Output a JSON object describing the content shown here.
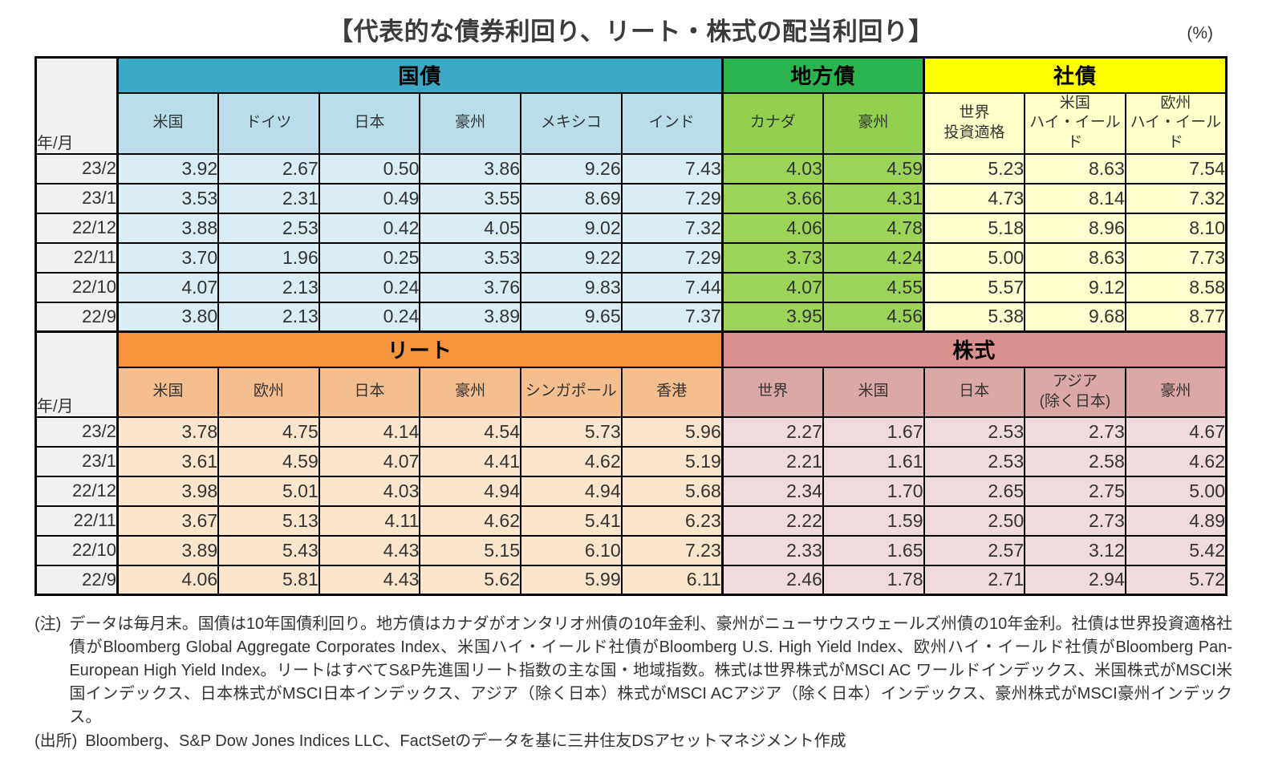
{
  "title": "【代表的な債券利回り、リート・株式の配当利回り】",
  "unit_label": "(%)",
  "top_table": {
    "year_label": "年/月",
    "sections": [
      {
        "name": "government-bonds",
        "label": "国債",
        "header_bg": "#3BA8C8",
        "sub_bg": "#B9DEEA",
        "cell_bg": "#DAEDF5",
        "columns": [
          "米国",
          "ドイツ",
          "日本",
          "豪州",
          "メキシコ",
          "インド"
        ]
      },
      {
        "name": "municipal-bonds",
        "label": "地方債",
        "header_bg": "#2BB34D",
        "sub_bg": "#92D050",
        "cell_bg": "#9CD45A",
        "columns": [
          "カナダ",
          "豪州"
        ]
      },
      {
        "name": "corporate-bonds",
        "label": "社債",
        "header_bg": "#FFFF00",
        "sub_bg": "#FFFFC9",
        "cell_bg": "#FFFFCF",
        "columns": [
          "世界\n投資適格",
          "米国\nハイ・イールド",
          "欧州\nハイ・イールド"
        ]
      }
    ],
    "rows": [
      {
        "period": "23/2",
        "values": [
          "3.92",
          "2.67",
          "0.50",
          "3.86",
          "9.26",
          "7.43",
          "4.03",
          "4.59",
          "5.23",
          "8.63",
          "7.54"
        ]
      },
      {
        "period": "23/1",
        "values": [
          "3.53",
          "2.31",
          "0.49",
          "3.55",
          "8.69",
          "7.29",
          "3.66",
          "4.31",
          "4.73",
          "8.14",
          "7.32"
        ]
      },
      {
        "period": "22/12",
        "values": [
          "3.88",
          "2.53",
          "0.42",
          "4.05",
          "9.02",
          "7.32",
          "4.06",
          "4.78",
          "5.18",
          "8.96",
          "8.10"
        ]
      },
      {
        "period": "22/11",
        "values": [
          "3.70",
          "1.96",
          "0.25",
          "3.53",
          "9.22",
          "7.29",
          "3.73",
          "4.24",
          "5.00",
          "8.63",
          "7.73"
        ]
      },
      {
        "period": "22/10",
        "values": [
          "4.07",
          "2.13",
          "0.24",
          "3.76",
          "9.83",
          "7.44",
          "4.07",
          "4.55",
          "5.57",
          "9.12",
          "8.58"
        ]
      },
      {
        "period": "22/9",
        "values": [
          "3.80",
          "2.13",
          "0.24",
          "3.89",
          "9.65",
          "7.37",
          "3.95",
          "4.56",
          "5.38",
          "9.68",
          "8.77"
        ]
      }
    ]
  },
  "bottom_table": {
    "year_label": "年/月",
    "sections": [
      {
        "name": "reit",
        "label": "リート",
        "header_bg": "#F7953F",
        "sub_bg": "#F5BE8E",
        "cell_bg": "#FBE5CD",
        "columns": [
          "米国",
          "欧州",
          "日本",
          "豪州",
          "シンガポール",
          "香港"
        ]
      },
      {
        "name": "stocks",
        "label": "株式",
        "header_bg": "#D9908F",
        "sub_bg": "#DCA8A7",
        "cell_bg": "#F0DBDC",
        "columns": [
          "世界",
          "米国",
          "日本",
          "アジア\n(除く日本)",
          "豪州"
        ]
      }
    ],
    "rows": [
      {
        "period": "23/2",
        "values": [
          "3.78",
          "4.75",
          "4.14",
          "4.54",
          "5.73",
          "5.96",
          "2.27",
          "1.67",
          "2.53",
          "2.73",
          "4.67"
        ]
      },
      {
        "period": "23/1",
        "values": [
          "3.61",
          "4.59",
          "4.07",
          "4.41",
          "4.62",
          "5.19",
          "2.21",
          "1.61",
          "2.53",
          "2.58",
          "4.62"
        ]
      },
      {
        "period": "22/12",
        "values": [
          "3.98",
          "5.01",
          "4.03",
          "4.94",
          "4.94",
          "5.68",
          "2.34",
          "1.70",
          "2.65",
          "2.75",
          "5.00"
        ]
      },
      {
        "period": "22/11",
        "values": [
          "3.67",
          "5.13",
          "4.11",
          "4.62",
          "5.41",
          "6.23",
          "2.22",
          "1.59",
          "2.50",
          "2.73",
          "4.89"
        ]
      },
      {
        "period": "22/10",
        "values": [
          "3.89",
          "5.43",
          "4.43",
          "5.15",
          "6.10",
          "7.23",
          "2.33",
          "1.65",
          "2.57",
          "3.12",
          "5.42"
        ]
      },
      {
        "period": "22/9",
        "values": [
          "4.06",
          "5.81",
          "4.43",
          "5.62",
          "5.99",
          "6.11",
          "2.46",
          "1.78",
          "2.71",
          "2.94",
          "5.72"
        ]
      }
    ]
  },
  "note": {
    "label": "(注)",
    "text": "データは毎月末。国債は10年国債利回り。地方債はカナダがオンタリオ州債の10年金利、豪州がニューサウスウェールズ州債の10年金利。社債は世界投資適格社債がBloomberg Global Aggregate Corporates Index、米国ハイ・イールド社債がBloomberg U.S. High Yield Index、欧州ハイ・イールド社債がBloomberg Pan-European High Yield Index。リートはすべてS&P先進国リート指数の主な国・地域指数。株式は世界株式がMSCI AC ワールドインデックス、米国株式がMSCI米国インデックス、日本株式がMSCI日本インデックス、アジア（除く日本）株式がMSCI ACアジア（除く日本）インデックス、豪州株式がMSCI豪州インデックス。"
  },
  "source": {
    "label": "(出所)",
    "text": "Bloomberg、S&P Dow Jones Indices LLC、FactSetのデータを基に三井住友DSアセットマネジメント作成"
  }
}
